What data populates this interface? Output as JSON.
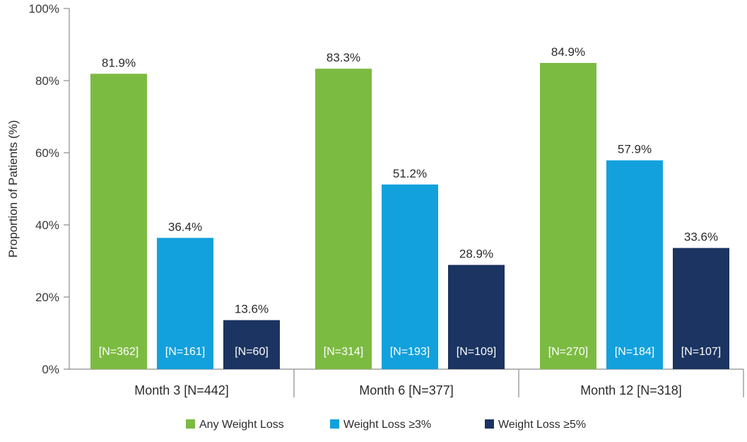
{
  "chart_data": {
    "type": "bar",
    "title": "",
    "xlabel": "",
    "ylabel": "Proportion of Patients (%)",
    "ylim": [
      0,
      100
    ],
    "yticks": [
      0,
      20,
      40,
      60,
      80,
      100
    ],
    "ytick_labels": [
      "0%",
      "20%",
      "40%",
      "60%",
      "80%",
      "100%"
    ],
    "categories": [
      "Month 3 [N=442]",
      "Month 6 [N=377]",
      "Month 12 [N=318]"
    ],
    "series": [
      {
        "name": "Any Weight Loss",
        "color": "#7cbb42",
        "values": [
          81.9,
          83.3,
          84.9
        ],
        "value_labels": [
          "81.9%",
          "83.3%",
          "84.9%"
        ],
        "n_labels": [
          "[N=362]",
          "[N=314]",
          "[N=270]"
        ]
      },
      {
        "name": "Weight Loss ≥3%",
        "color": "#12a1dc",
        "values": [
          36.4,
          51.2,
          57.9
        ],
        "value_labels": [
          "36.4%",
          "51.2%",
          "57.9%"
        ],
        "n_labels": [
          "[N=161]",
          "[N=193]",
          "[N=184]"
        ]
      },
      {
        "name": "Weight Loss ≥5%",
        "color": "#1b3461",
        "values": [
          13.6,
          28.9,
          33.6
        ],
        "value_labels": [
          "13.6%",
          "28.9%",
          "33.6%"
        ],
        "n_labels": [
          "[N=60]",
          "[N=109]",
          "[N=107]"
        ]
      }
    ],
    "legend_position": "bottom-center",
    "grid": false
  }
}
